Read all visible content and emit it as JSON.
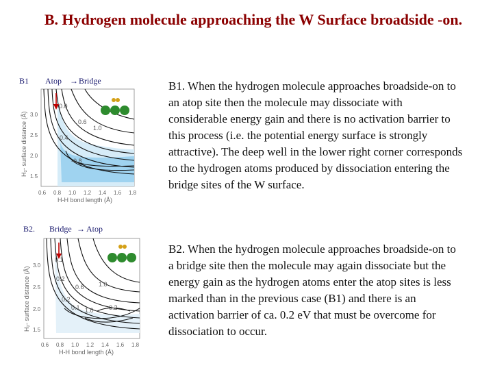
{
  "title": "B. Hydrogen molecule approaching the W Surface broadside -on.",
  "panel_b1": {
    "tag": "B1",
    "from": "Atop",
    "arrow": "→",
    "to": "Bridge",
    "ylabel": "H₂- surface distance (Å)",
    "xlabel": "H-H bond length (Å)",
    "xticks": [
      "0.6",
      "0.8",
      "1.0",
      "1.2",
      "1.4",
      "1.6",
      "1.8"
    ],
    "yticks": [
      "3.0",
      "2.5",
      "2.0",
      "1.5"
    ],
    "contours": [
      "0.0",
      "0.6",
      "1.0",
      "-0.4",
      "-0.8"
    ]
  },
  "panel_b2": {
    "tag": "B2.",
    "from": "Bridge",
    "arrow": "→",
    "to": "Atop",
    "ylabel": "H₂- surface distance (Å)",
    "xlabel": "H-H bond length (Å)",
    "xticks": [
      "0.6",
      "0.8",
      "1.0",
      "1.2",
      "1.4",
      "1.6",
      "1.8"
    ],
    "yticks": [
      "3.0",
      "2.5",
      "2.0",
      "1.5"
    ],
    "contours": [
      "0.1",
      "0.2",
      "0.6",
      "1.0",
      "0.2",
      "0.1",
      "1.0",
      "-0.2"
    ]
  },
  "text_b1": "B1. When the hydrogen molecule approaches broadside-on to an atop site then the molecule may dissociate with considerable energy gain and there is no activation barrier to this process (i.e. the potential energy surface is strongly attractive). The deep well in the lower right corner corresponds to the hydrogen atoms produced by dissociation entering the bridge sites of the W surface.",
  "text_b2": "B2. When the hydrogen molecule approaches broadside-on to a bridge site then the molecule may again dissociate but the energy gain as the hydrogen atoms enter the atop sites is less marked than in the previous case (B1) and there is an activation barrier of ca. 0.2 eV that must be overcome for dissociation to occur.",
  "colors": {
    "title": "#8b0000",
    "well": "#9fd3f0",
    "well_light": "#d6ecf8",
    "w_atom": "#2e8b2e",
    "h_atom": "#d4a017",
    "arrow": "#c00000"
  }
}
